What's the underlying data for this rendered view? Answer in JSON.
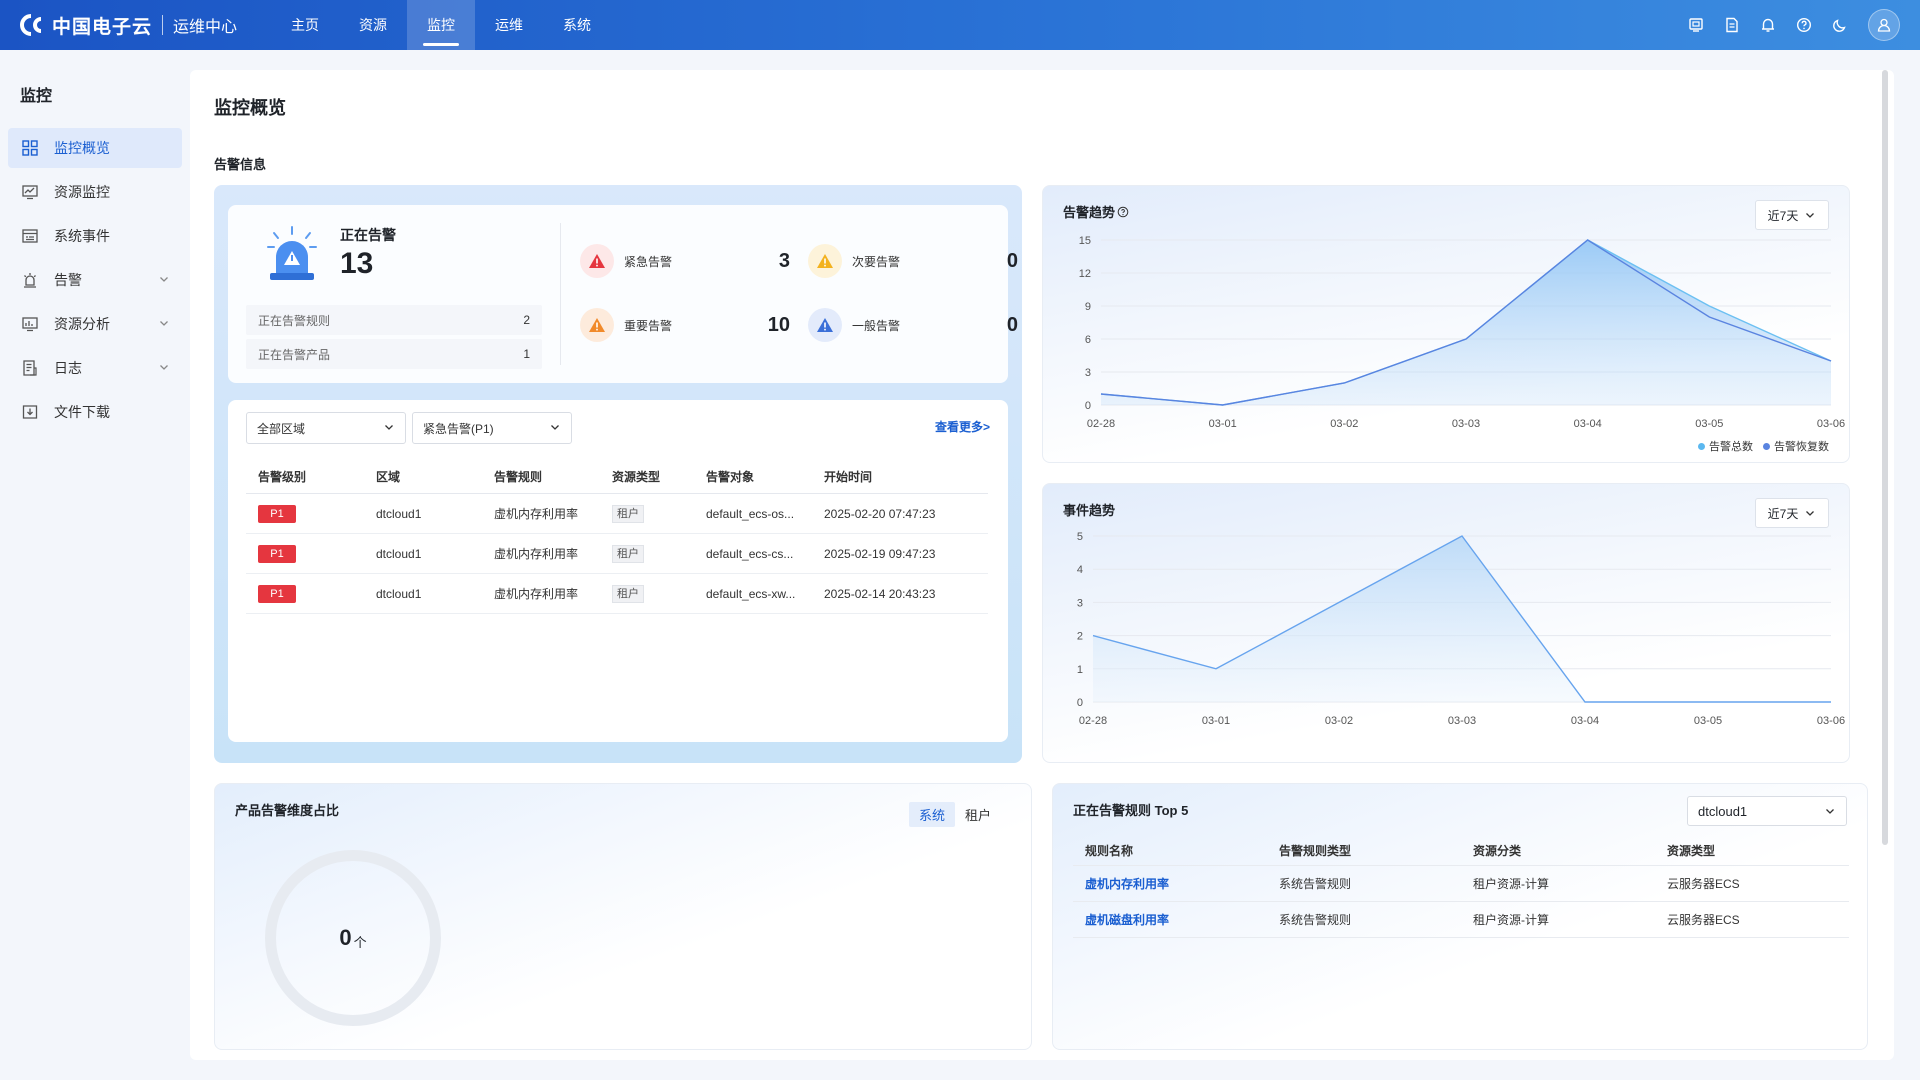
{
  "header": {
    "brand": "中国电子云",
    "product": "运维中心",
    "nav": [
      {
        "label": "主页"
      },
      {
        "label": "资源"
      },
      {
        "label": "监控"
      },
      {
        "label": "运维"
      },
      {
        "label": "系统"
      }
    ],
    "active_nav": "监控"
  },
  "sidebar": {
    "title": "监控",
    "items": [
      {
        "label": "监控概览",
        "icon": "grid-icon",
        "active": true
      },
      {
        "label": "资源监控",
        "icon": "monitor-chart-icon"
      },
      {
        "label": "系统事件",
        "icon": "event-log-icon"
      },
      {
        "label": "告警",
        "icon": "alarm-light-icon",
        "expandable": true
      },
      {
        "label": "资源分析",
        "icon": "analysis-icon",
        "expandable": true
      },
      {
        "label": "日志",
        "icon": "log-icon",
        "expandable": true
      },
      {
        "label": "文件下载",
        "icon": "download-icon"
      }
    ]
  },
  "page": {
    "title": "监控概览",
    "alarm_section_title": "告警信息"
  },
  "alarm_summary": {
    "label": "正在告警",
    "count": "13",
    "rows": [
      {
        "label": "正在告警规则",
        "value": "2"
      },
      {
        "label": "正在告警产品",
        "value": "1"
      }
    ],
    "levels": [
      {
        "label": "紧急告警",
        "value": "3",
        "color": "#e5363f"
      },
      {
        "label": "次要告警",
        "value": "0",
        "color": "#f3b21f"
      },
      {
        "label": "重要告警",
        "value": "10",
        "color": "#f18a2a"
      },
      {
        "label": "一般告警",
        "value": "0",
        "color": "#3a6fd8"
      }
    ]
  },
  "alarm_table": {
    "region_select": "全部区域",
    "level_select": "紧急告警(P1)",
    "more_link": "查看更多>",
    "columns": [
      "告警级别",
      "区域",
      "告警规则",
      "资源类型",
      "告警对象",
      "开始时间"
    ],
    "rows": [
      {
        "level": "P1",
        "region": "dtcloud1",
        "rule": "虚机内存利用率",
        "type": "租户",
        "object": "default_ecs-os...",
        "time": "2025-02-20 07:47:23"
      },
      {
        "level": "P1",
        "region": "dtcloud1",
        "rule": "虚机内存利用率",
        "type": "租户",
        "object": "default_ecs-cs...",
        "time": "2025-02-19 09:47:23"
      },
      {
        "level": "P1",
        "region": "dtcloud1",
        "rule": "虚机内存利用率",
        "type": "租户",
        "object": "default_ecs-xw...",
        "time": "2025-02-14 20:43:23"
      }
    ]
  },
  "alarm_trend": {
    "title": "告警趋势",
    "range": "近7天",
    "legend": [
      {
        "name": "告警总数",
        "color": "#5bb8f0"
      },
      {
        "name": "告警恢复数",
        "color": "#5a84e0"
      }
    ]
  },
  "event_trend": {
    "title": "事件趋势",
    "range": "近7天"
  },
  "chart_data": [
    {
      "type": "area",
      "title": "告警趋势",
      "categories": [
        "02-28",
        "03-01",
        "03-02",
        "03-03",
        "03-04",
        "03-05",
        "03-06"
      ],
      "y_ticks": [
        "0",
        "3",
        "6",
        "9",
        "12",
        "15"
      ],
      "ylim": [
        0,
        15
      ],
      "series": [
        {
          "name": "告警总数",
          "values": [
            1,
            0,
            2,
            6,
            15,
            9,
            4
          ]
        },
        {
          "name": "告警恢复数",
          "values": [
            1,
            0,
            2,
            6,
            15,
            8,
            4
          ]
        }
      ],
      "legend_position": "bottom-right",
      "grid": true
    },
    {
      "type": "area",
      "title": "事件趋势",
      "categories": [
        "02-28",
        "03-01",
        "03-02",
        "03-03",
        "03-04",
        "03-05",
        "03-06"
      ],
      "y_ticks": [
        "0",
        "1",
        "2",
        "3",
        "4",
        "5"
      ],
      "ylim": [
        0,
        5
      ],
      "series": [
        {
          "values": [
            2,
            1,
            3,
            5,
            0,
            0,
            0
          ]
        }
      ],
      "grid": true
    }
  ],
  "product_ratio": {
    "title": "产品告警维度占比",
    "tabs": [
      {
        "label": "系统",
        "active": true
      },
      {
        "label": "租户"
      }
    ],
    "total": "0",
    "unit": "个"
  },
  "top_rules": {
    "title": "正在告警规则 Top 5",
    "region_select": "dtcloud1",
    "columns": [
      "规则名称",
      "告警规则类型",
      "资源分类",
      "资源类型"
    ],
    "rows": [
      {
        "name": "虚机内存利用率",
        "rule_type": "系统告警规则",
        "category": "租户资源-计算",
        "res_type": "云服务器ECS"
      },
      {
        "name": "虚机磁盘利用率",
        "rule_type": "系统告警规则",
        "category": "租户资源-计算",
        "res_type": "云服务器ECS"
      }
    ]
  }
}
